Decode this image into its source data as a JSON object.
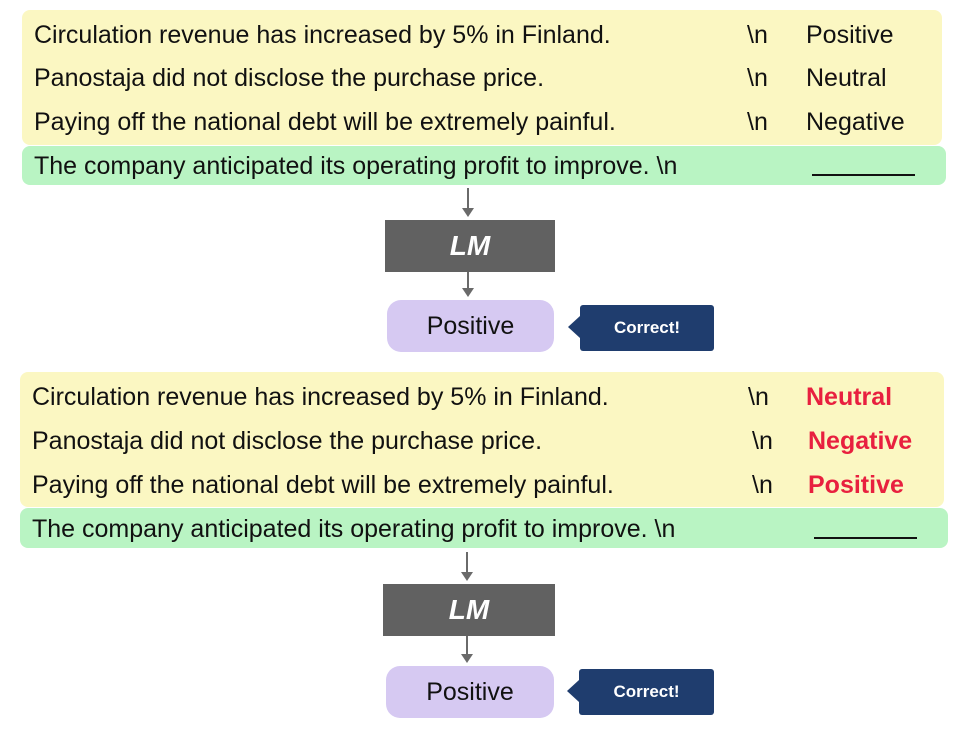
{
  "panels": [
    {
      "demos": [
        {
          "sentence": "Circulation revenue has increased by 5% in Finland.",
          "newline": "\\n",
          "label": "Positive"
        },
        {
          "sentence": "Panostaja did not disclose the purchase price.",
          "newline": "\\n",
          "label": "Neutral"
        },
        {
          "sentence": "Paying off the national debt will be extremely painful.",
          "newline": "\\n",
          "label": "Negative"
        }
      ],
      "query": "The company anticipated its operating profit to improve. \\n",
      "model": "LM",
      "output": "Positive",
      "verdict": "Correct!"
    },
    {
      "demos": [
        {
          "sentence": "Circulation revenue has increased by 5% in Finland.",
          "newline": "\\n",
          "label": "Neutral"
        },
        {
          "sentence": "Panostaja did not disclose the purchase price.",
          "newline": "\\n",
          "label": "Negative"
        },
        {
          "sentence": "Paying off the national debt will be extremely painful.",
          "newline": "\\n",
          "label": "Positive"
        }
      ],
      "query": "The company anticipated its operating profit to improve. \\n",
      "model": "LM",
      "output": "Positive",
      "verdict": "Correct!"
    }
  ],
  "colors": {
    "demo_bg": "#fbf7c2",
    "query_bg": "#b9f4c3",
    "lm_bg": "#616161",
    "output_bg": "#d6c9f2",
    "callout_bg": "#1f3d6e",
    "wrong_label": "#e8203f"
  }
}
